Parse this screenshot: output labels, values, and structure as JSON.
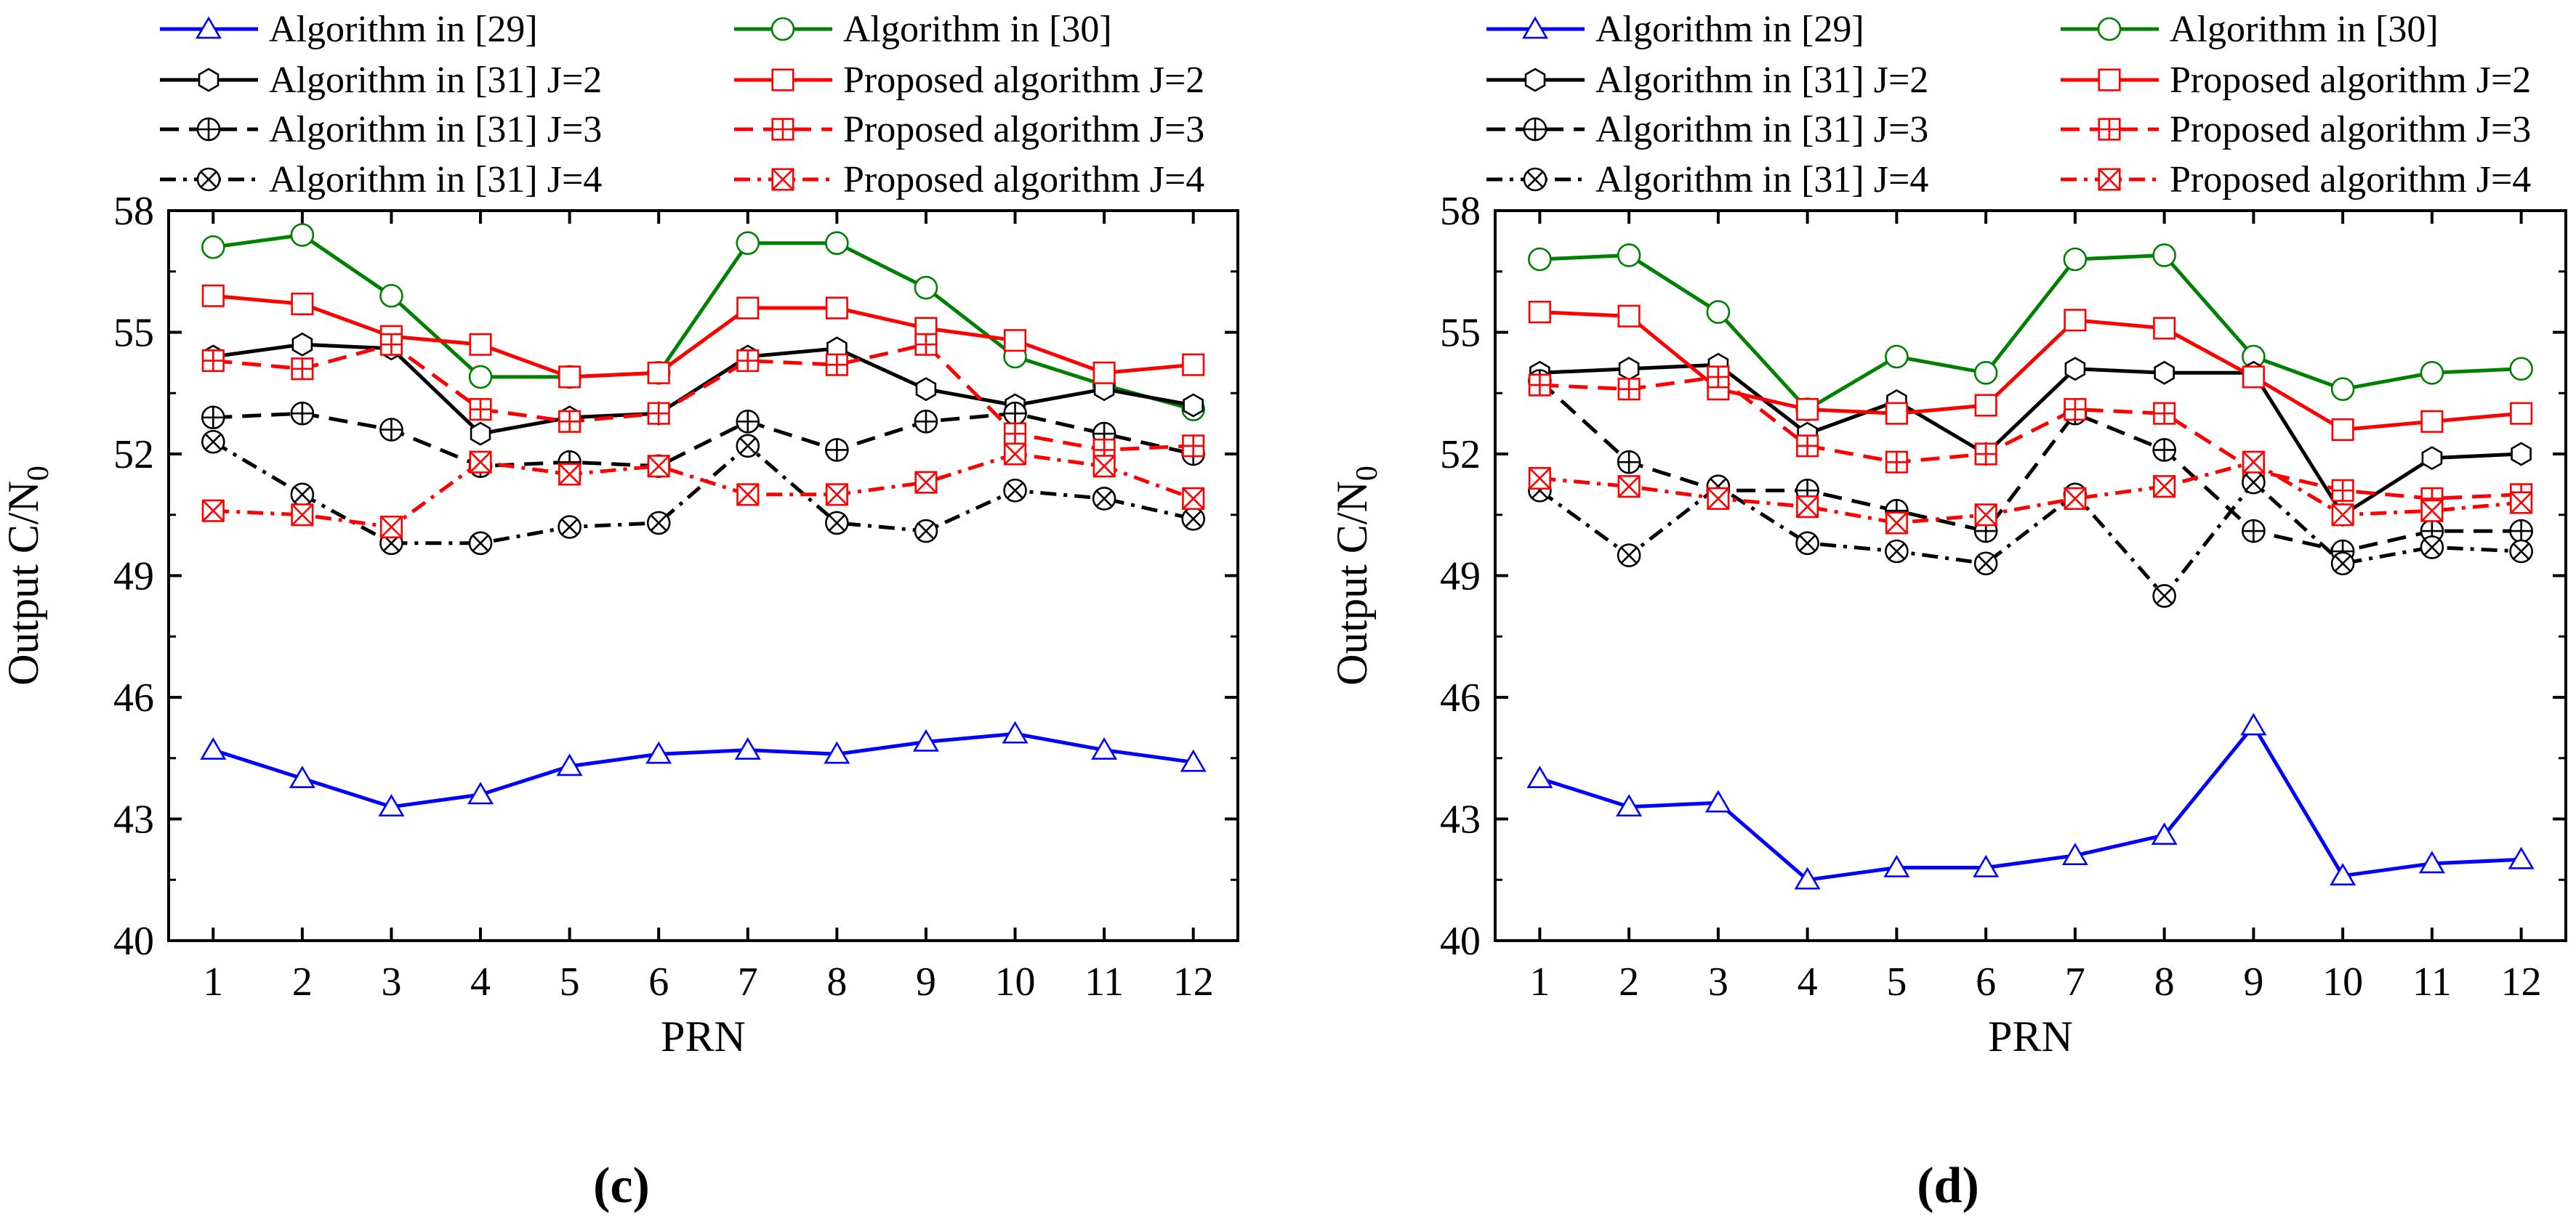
{
  "chart_data": [
    {
      "type": "line",
      "panel_label": "(c)",
      "xlabel": "PRN",
      "ylabel": "Output C/N",
      "ylabel_subscript": "0",
      "x": [
        1,
        2,
        3,
        4,
        5,
        6,
        7,
        8,
        9,
        10,
        11,
        12
      ],
      "xlim": [
        0.5,
        12.5
      ],
      "ylim": [
        40,
        58
      ],
      "yticks": [
        40,
        43,
        46,
        49,
        52,
        55,
        58
      ],
      "series": [
        {
          "name": "Algorithm in [29]",
          "color": "#0000ff",
          "dash": "solid",
          "marker": "triangle",
          "values": [
            44.7,
            44.0,
            43.3,
            43.6,
            44.3,
            44.6,
            44.7,
            44.6,
            44.9,
            45.1,
            44.7,
            44.4
          ]
        },
        {
          "name": "Algorithm in [30]",
          "color": "#008000",
          "dash": "solid",
          "marker": "circle",
          "values": [
            57.1,
            57.4,
            55.9,
            53.9,
            53.9,
            54.0,
            57.2,
            57.2,
            56.1,
            54.4,
            53.7,
            53.1
          ]
        },
        {
          "name": "Algorithm in [31] J=2",
          "color": "#000000",
          "dash": "solid",
          "marker": "hexagon",
          "values": [
            54.4,
            54.7,
            54.6,
            52.5,
            52.9,
            53.0,
            54.4,
            54.6,
            53.6,
            53.2,
            53.6,
            53.2
          ]
        },
        {
          "name": "Proposed  algorithm J=2",
          "color": "#ff0000",
          "dash": "solid",
          "marker": "square",
          "values": [
            55.9,
            55.7,
            54.9,
            54.7,
            53.9,
            54.0,
            55.6,
            55.6,
            55.1,
            54.8,
            54.0,
            54.2
          ]
        },
        {
          "name": "Algorithm in [31] J=3",
          "color": "#000000",
          "dash": "dash",
          "marker": "circle-plus",
          "values": [
            52.9,
            53.0,
            52.6,
            51.7,
            51.8,
            51.7,
            52.8,
            52.1,
            52.8,
            53.0,
            52.5,
            52.0
          ]
        },
        {
          "name": "Proposed  algorithm J=3",
          "color": "#ff0000",
          "dash": "dash",
          "marker": "square-plus",
          "values": [
            54.3,
            54.1,
            54.7,
            53.1,
            52.8,
            53.0,
            54.3,
            54.2,
            54.7,
            52.5,
            52.1,
            52.2
          ]
        },
        {
          "name": "Algorithm in [31] J=4",
          "color": "#000000",
          "dash": "dashdot",
          "marker": "circle-x",
          "values": [
            52.3,
            51.0,
            49.8,
            49.8,
            50.2,
            50.3,
            52.2,
            50.3,
            50.1,
            51.1,
            50.9,
            50.4
          ]
        },
        {
          "name": "Proposed  algorithm J=4",
          "color": "#ff0000",
          "dash": "dashdot",
          "marker": "square-x",
          "values": [
            50.6,
            50.5,
            50.2,
            51.8,
            51.5,
            51.7,
            51.0,
            51.0,
            51.3,
            52.0,
            51.7,
            50.9
          ]
        }
      ]
    },
    {
      "type": "line",
      "panel_label": "(d)",
      "xlabel": "PRN",
      "ylabel": "Output C/N",
      "ylabel_subscript": "0",
      "x": [
        1,
        2,
        3,
        4,
        5,
        6,
        7,
        8,
        9,
        10,
        11,
        12
      ],
      "xlim": [
        0.5,
        12.5
      ],
      "ylim": [
        40,
        58
      ],
      "yticks": [
        40,
        43,
        46,
        49,
        52,
        55,
        58
      ],
      "series": [
        {
          "name": "Algorithm in [29]",
          "color": "#0000ff",
          "dash": "solid",
          "marker": "triangle",
          "values": [
            44.0,
            43.3,
            43.4,
            41.5,
            41.8,
            41.8,
            42.1,
            42.6,
            45.3,
            41.6,
            41.9,
            42.0
          ]
        },
        {
          "name": "Algorithm in [30]",
          "color": "#008000",
          "dash": "solid",
          "marker": "circle",
          "values": [
            56.8,
            56.9,
            55.5,
            53.1,
            54.4,
            54.0,
            56.8,
            56.9,
            54.4,
            53.6,
            54.0,
            54.1
          ]
        },
        {
          "name": "Algorithm in [31] J=2",
          "color": "#000000",
          "dash": "solid",
          "marker": "hexagon",
          "values": [
            54.0,
            54.1,
            54.2,
            52.5,
            53.3,
            52.0,
            54.1,
            54.0,
            54.0,
            50.5,
            51.9,
            52.0
          ]
        },
        {
          "name": "Proposed  algorithm J=2",
          "color": "#ff0000",
          "dash": "solid",
          "marker": "square",
          "values": [
            55.5,
            55.4,
            53.6,
            53.1,
            53.0,
            53.2,
            55.3,
            55.1,
            53.9,
            52.6,
            52.8,
            53.0
          ]
        },
        {
          "name": "Algorithm in [31] J=3",
          "color": "#000000",
          "dash": "dash",
          "marker": "circle-plus",
          "values": [
            53.8,
            51.8,
            51.1,
            51.1,
            50.6,
            50.1,
            53.0,
            52.1,
            50.1,
            49.6,
            50.1,
            50.1
          ]
        },
        {
          "name": "Proposed  algorithm J=3",
          "color": "#ff0000",
          "dash": "dash",
          "marker": "square-plus",
          "values": [
            53.7,
            53.6,
            53.9,
            52.2,
            51.8,
            52.0,
            53.1,
            53.0,
            51.6,
            51.1,
            50.9,
            51.0
          ]
        },
        {
          "name": "Algorithm in [31] J=4",
          "color": "#000000",
          "dash": "dashdot",
          "marker": "circle-x",
          "values": [
            51.1,
            49.5,
            51.2,
            49.8,
            49.6,
            49.3,
            51.0,
            48.5,
            51.3,
            49.3,
            49.7,
            49.6
          ]
        },
        {
          "name": "Proposed  algorithm J=4",
          "color": "#ff0000",
          "dash": "dashdot",
          "marker": "square-x",
          "values": [
            51.4,
            51.2,
            50.9,
            50.7,
            50.3,
            50.5,
            50.9,
            51.2,
            51.8,
            50.5,
            50.6,
            50.8
          ]
        }
      ]
    }
  ]
}
